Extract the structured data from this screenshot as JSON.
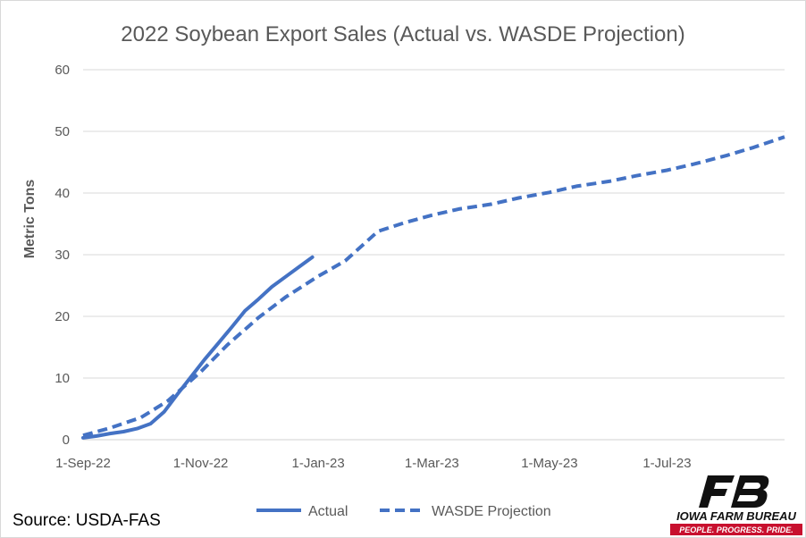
{
  "chart_data": {
    "type": "line",
    "title": "2022 Soybean Export Sales (Actual vs. WASDE Projection)",
    "xlabel": "",
    "ylabel": "Metric Tons",
    "x_tick_labels": [
      "1-Sep-22",
      "1-Nov-22",
      "1-Jan-23",
      "1-Mar-23",
      "1-May-23",
      "1-Jul-23"
    ],
    "x_tick_dates": [
      "2022-09-01",
      "2022-11-01",
      "2023-01-01",
      "2023-03-01",
      "2023-05-01",
      "2023-07-01"
    ],
    "xlim": [
      "2022-09-01",
      "2023-08-31"
    ],
    "ylim": [
      0,
      60
    ],
    "yticks": [
      0,
      10,
      20,
      30,
      40,
      50,
      60
    ],
    "grid": true,
    "legend_position": "bottom",
    "series": [
      {
        "name": "Actual",
        "style": "solid",
        "color": "#4472c4",
        "points": [
          [
            "2022-09-01",
            0.3
          ],
          [
            "2022-09-08",
            0.6
          ],
          [
            "2022-09-15",
            1.0
          ],
          [
            "2022-09-22",
            1.3
          ],
          [
            "2022-09-29",
            1.8
          ],
          [
            "2022-10-06",
            2.6
          ],
          [
            "2022-10-13",
            4.5
          ],
          [
            "2022-10-20",
            7.4
          ],
          [
            "2022-10-27",
            10.2
          ],
          [
            "2022-11-03",
            13.0
          ],
          [
            "2022-11-10",
            15.6
          ],
          [
            "2022-11-17",
            18.2
          ],
          [
            "2022-11-24",
            20.9
          ],
          [
            "2022-12-01",
            22.8
          ],
          [
            "2022-12-08",
            24.8
          ],
          [
            "2022-12-15",
            26.4
          ],
          [
            "2022-12-22",
            28.0
          ],
          [
            "2022-12-29",
            29.6
          ]
        ]
      },
      {
        "name": "WASDE Projection",
        "style": "dashed",
        "color": "#4472c4",
        "points": [
          [
            "2022-09-01",
            0.7
          ],
          [
            "2022-09-15",
            1.9
          ],
          [
            "2022-10-01",
            3.6
          ],
          [
            "2022-10-15",
            6.3
          ],
          [
            "2022-11-01",
            11.0
          ],
          [
            "2022-11-15",
            15.4
          ],
          [
            "2022-12-01",
            19.8
          ],
          [
            "2022-12-15",
            23.1
          ],
          [
            "2023-01-01",
            26.5
          ],
          [
            "2023-01-15",
            29.0
          ],
          [
            "2023-02-01",
            33.8
          ],
          [
            "2023-02-15",
            35.2
          ],
          [
            "2023-03-01",
            36.4
          ],
          [
            "2023-03-15",
            37.4
          ],
          [
            "2023-04-01",
            38.2
          ],
          [
            "2023-04-15",
            39.2
          ],
          [
            "2023-05-01",
            40.1
          ],
          [
            "2023-05-15",
            41.1
          ],
          [
            "2023-06-01",
            41.9
          ],
          [
            "2023-06-15",
            42.8
          ],
          [
            "2023-07-01",
            43.7
          ],
          [
            "2023-07-15",
            44.7
          ],
          [
            "2023-08-01",
            46.1
          ],
          [
            "2023-08-15",
            47.4
          ],
          [
            "2023-08-31",
            49.1
          ]
        ]
      }
    ]
  },
  "source_text": "Source: USDA-FAS",
  "logo": {
    "org_name": "IOWA FARM BUREAU",
    "tagline": "PEOPLE. PROGRESS. PRIDE.",
    "mark_text": "FB",
    "colors": {
      "black": "#111111",
      "red": "#c8102e"
    }
  }
}
